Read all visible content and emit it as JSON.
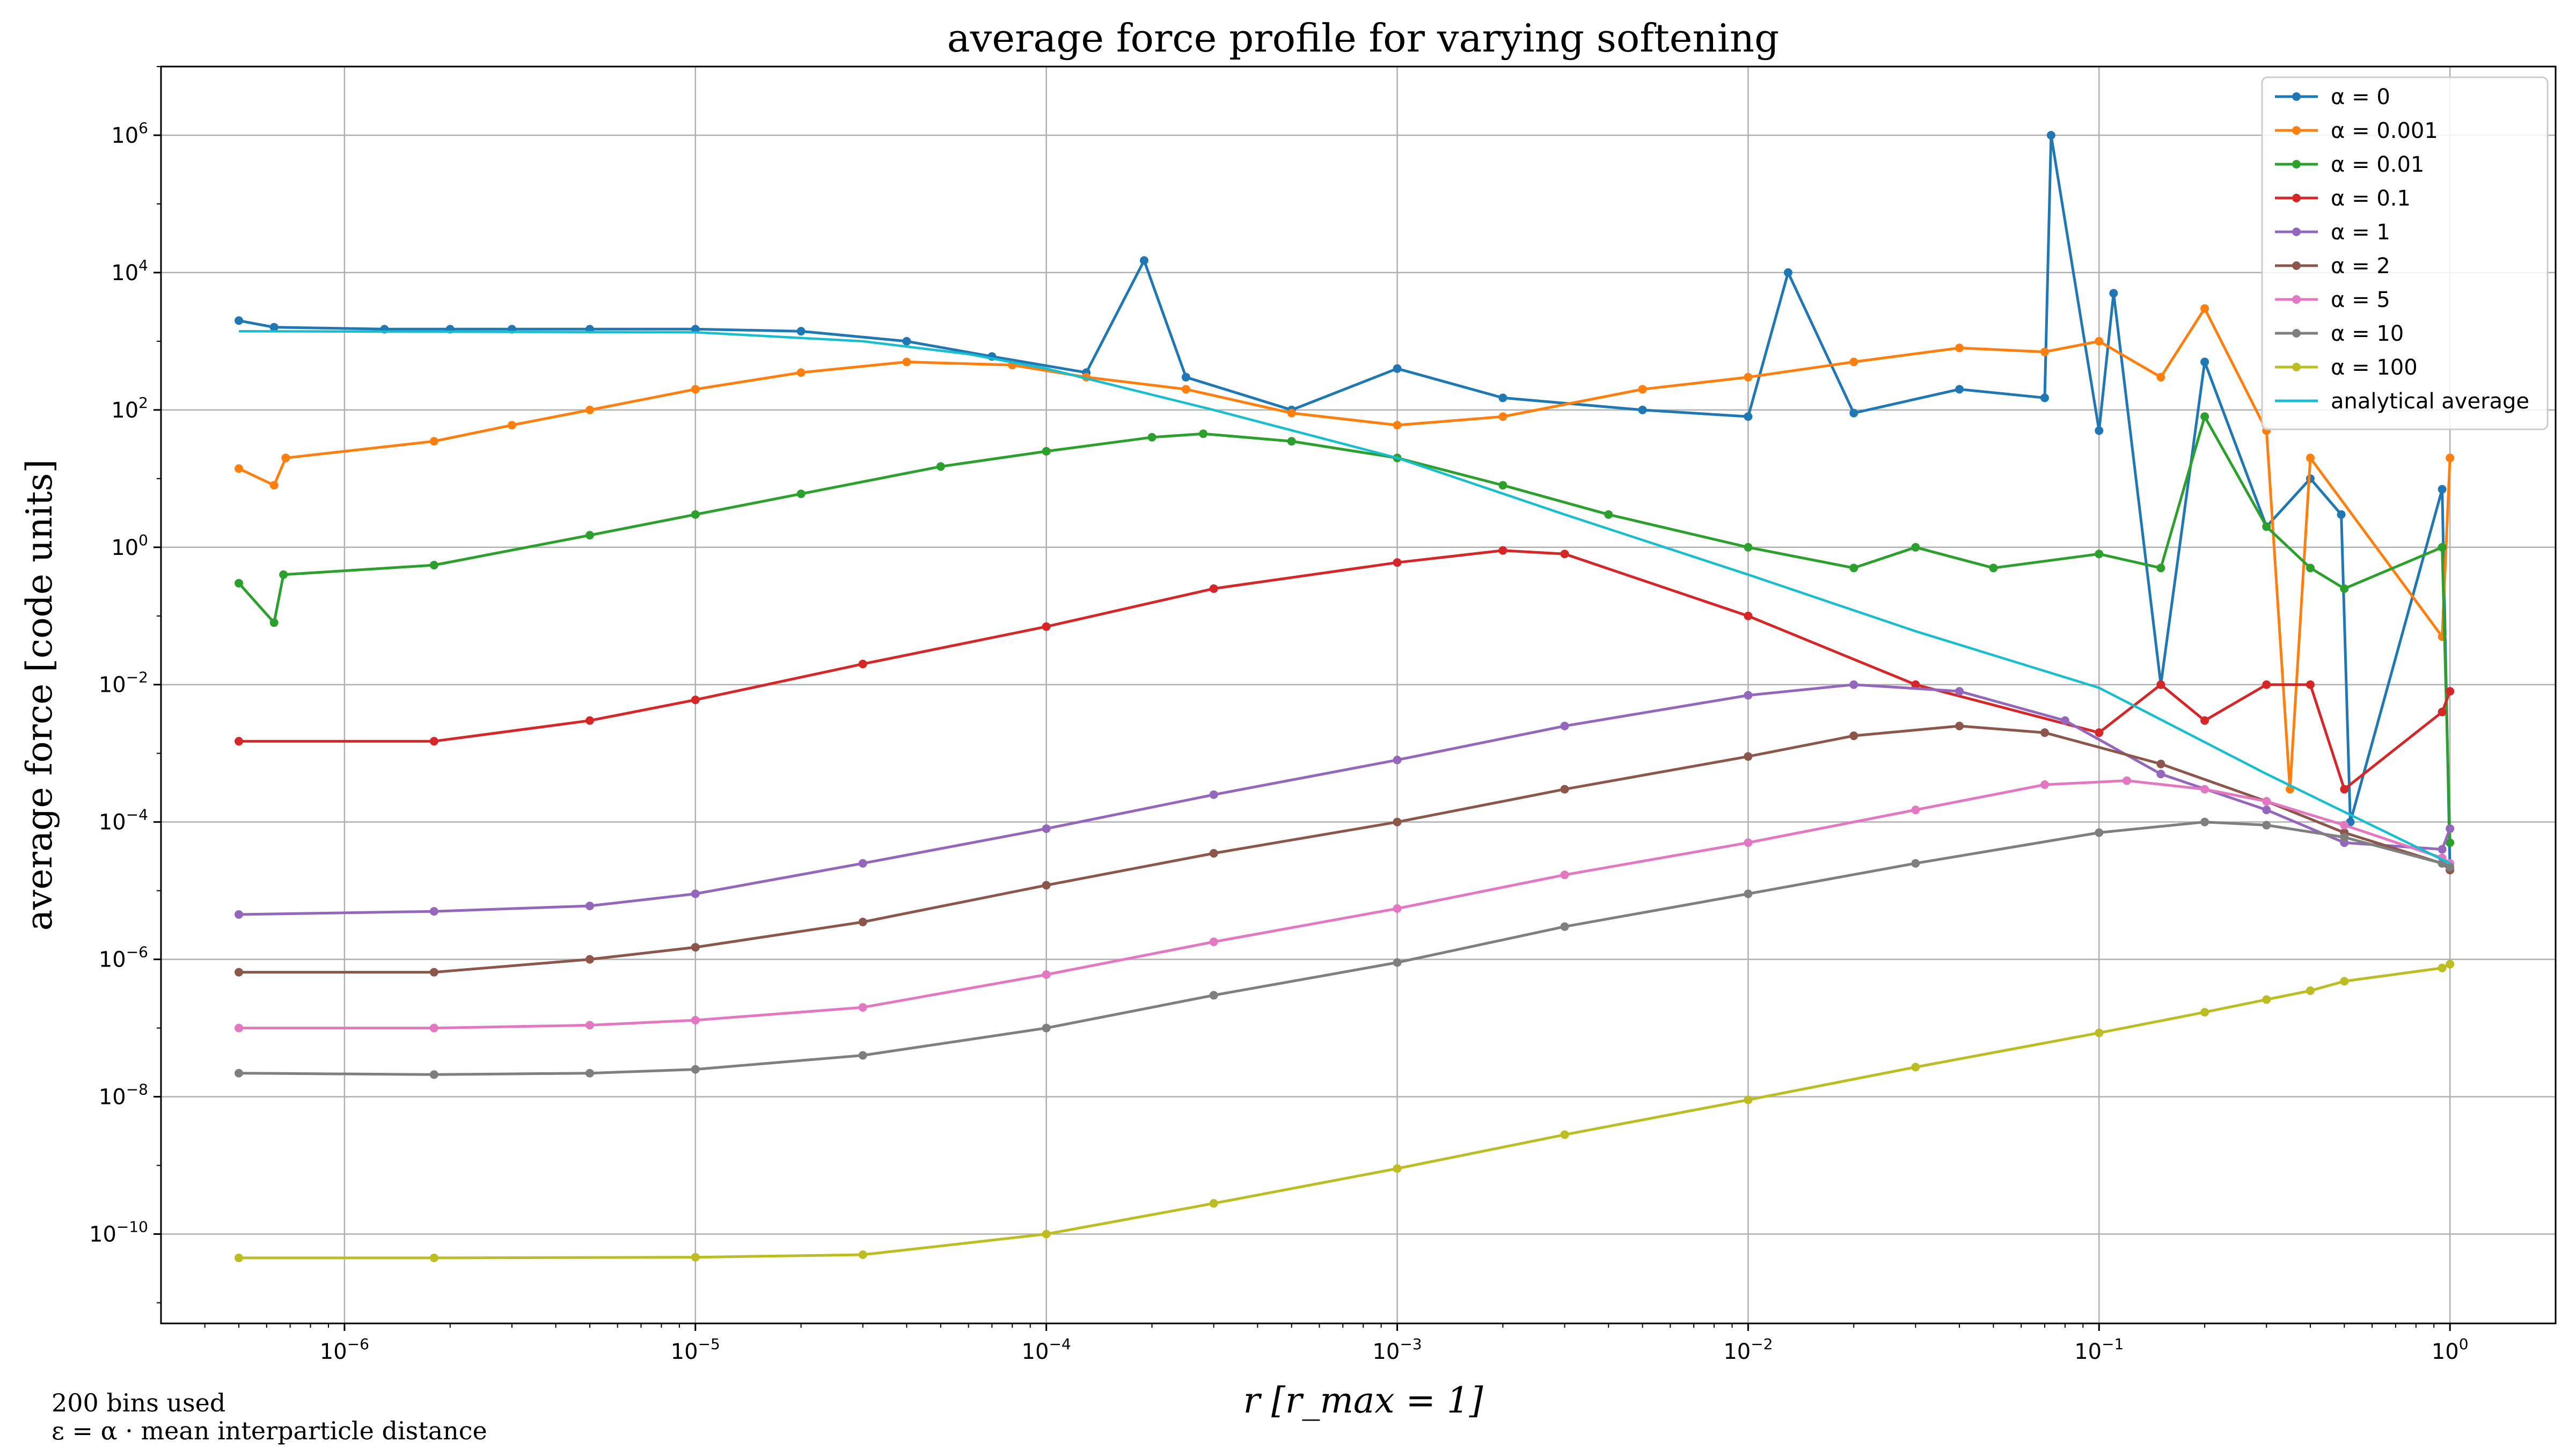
{
  "chart_data": {
    "type": "line",
    "title": "average force profile for varying softening",
    "xlabel": "r [r_max = 1]",
    "ylabel": "average force [code units]",
    "xscale": "log",
    "yscale": "log",
    "xlim": [
      3e-07,
      2.0
    ],
    "ylim": [
      5e-12,
      10000000.0
    ],
    "xticks": [
      1e-06,
      1e-05,
      0.0001,
      0.001,
      0.01,
      0.1,
      1
    ],
    "xtick_labels": [
      "10^-6",
      "10^-5",
      "10^-4",
      "10^-3",
      "10^-2",
      "10^-1",
      "10^0"
    ],
    "yticks": [
      1e-10,
      1e-08,
      1e-06,
      0.0001,
      0.01,
      1,
      100.0,
      10000.0,
      1000000.0
    ],
    "ytick_labels": [
      "10^-10",
      "10^-8",
      "10^-6",
      "10^-4",
      "10^-2",
      "10^0",
      "10^2",
      "10^4",
      "10^6"
    ],
    "grid": true,
    "legend_position": "top-right",
    "series": [
      {
        "name": "α = 0",
        "color": "#1f77b4",
        "points": [
          [
            5e-07,
            2000
          ],
          [
            6.3e-07,
            1600
          ],
          [
            1.3e-06,
            1500
          ],
          [
            2e-06,
            1500
          ],
          [
            3e-06,
            1500
          ],
          [
            5e-06,
            1500
          ],
          [
            1e-05,
            1500
          ],
          [
            2e-05,
            1400
          ],
          [
            4e-05,
            1000
          ],
          [
            7e-05,
            600
          ],
          [
            0.00013,
            350
          ],
          [
            0.00019,
            15000
          ],
          [
            0.00025,
            300
          ],
          [
            0.0005,
            100
          ],
          [
            0.001,
            400
          ],
          [
            0.002,
            150
          ],
          [
            0.005,
            100
          ],
          [
            0.01,
            80
          ],
          [
            0.013,
            10000
          ],
          [
            0.02,
            90
          ],
          [
            0.04,
            200
          ],
          [
            0.07,
            150
          ],
          [
            0.073,
            1000000
          ],
          [
            0.1,
            50
          ],
          [
            0.11,
            5000
          ],
          [
            0.15,
            0.01
          ],
          [
            0.2,
            500
          ],
          [
            0.3,
            2
          ],
          [
            0.4,
            10
          ],
          [
            0.49,
            3
          ],
          [
            0.52,
            0.0001
          ],
          [
            0.95,
            7
          ],
          [
            1.0,
            2e-05
          ]
        ]
      },
      {
        "name": "α = 0.001",
        "color": "#ff7f0e",
        "points": [
          [
            5e-07,
            14
          ],
          [
            6.3e-07,
            8
          ],
          [
            6.8e-07,
            20
          ],
          [
            1.8e-06,
            35
          ],
          [
            3e-06,
            60
          ],
          [
            5e-06,
            100
          ],
          [
            1e-05,
            200
          ],
          [
            2e-05,
            350
          ],
          [
            4e-05,
            500
          ],
          [
            8e-05,
            450
          ],
          [
            0.00013,
            300
          ],
          [
            0.00025,
            200
          ],
          [
            0.0005,
            90
          ],
          [
            0.001,
            60
          ],
          [
            0.002,
            80
          ],
          [
            0.005,
            200
          ],
          [
            0.01,
            300
          ],
          [
            0.02,
            500
          ],
          [
            0.04,
            800
          ],
          [
            0.07,
            700
          ],
          [
            0.1,
            1000
          ],
          [
            0.15,
            300
          ],
          [
            0.2,
            3000
          ],
          [
            0.3,
            50
          ],
          [
            0.35,
            0.0003
          ],
          [
            0.4,
            20
          ],
          [
            0.95,
            0.05
          ],
          [
            1.0,
            20
          ]
        ]
      },
      {
        "name": "α = 0.01",
        "color": "#2ca02c",
        "points": [
          [
            5e-07,
            0.3
          ],
          [
            6.3e-07,
            0.08
          ],
          [
            6.7e-07,
            0.4
          ],
          [
            1.8e-06,
            0.55
          ],
          [
            5e-06,
            1.5
          ],
          [
            1e-05,
            3
          ],
          [
            2e-05,
            6
          ],
          [
            5e-05,
            15
          ],
          [
            0.0001,
            25
          ],
          [
            0.0002,
            40
          ],
          [
            0.00028,
            45
          ],
          [
            0.0005,
            35
          ],
          [
            0.001,
            20
          ],
          [
            0.002,
            8
          ],
          [
            0.004,
            3
          ],
          [
            0.01,
            1
          ],
          [
            0.02,
            0.5
          ],
          [
            0.03,
            1
          ],
          [
            0.05,
            0.5
          ],
          [
            0.1,
            0.8
          ],
          [
            0.15,
            0.5
          ],
          [
            0.2,
            80
          ],
          [
            0.3,
            2
          ],
          [
            0.4,
            0.5
          ],
          [
            0.5,
            0.25
          ],
          [
            0.95,
            1
          ],
          [
            1.0,
            5e-05
          ]
        ]
      },
      {
        "name": "α = 0.1",
        "color": "#d62728",
        "points": [
          [
            5e-07,
            0.0015
          ],
          [
            1.8e-06,
            0.0015
          ],
          [
            5e-06,
            0.003
          ],
          [
            1e-05,
            0.006
          ],
          [
            3e-05,
            0.02
          ],
          [
            0.0001,
            0.07
          ],
          [
            0.0003,
            0.25
          ],
          [
            0.001,
            0.6
          ],
          [
            0.002,
            0.9
          ],
          [
            0.003,
            0.8
          ],
          [
            0.01,
            0.1
          ],
          [
            0.03,
            0.01
          ],
          [
            0.1,
            0.002
          ],
          [
            0.15,
            0.01
          ],
          [
            0.2,
            0.003
          ],
          [
            0.3,
            0.01
          ],
          [
            0.4,
            0.01
          ],
          [
            0.5,
            0.0003
          ],
          [
            0.95,
            0.004
          ],
          [
            1.0,
            0.008
          ]
        ]
      },
      {
        "name": "α = 1",
        "color": "#9467bd",
        "points": [
          [
            5e-07,
            4.5e-06
          ],
          [
            1.8e-06,
            5e-06
          ],
          [
            5e-06,
            6e-06
          ],
          [
            1e-05,
            9e-06
          ],
          [
            3e-05,
            2.5e-05
          ],
          [
            0.0001,
            8e-05
          ],
          [
            0.0003,
            0.00025
          ],
          [
            0.001,
            0.0008
          ],
          [
            0.003,
            0.0025
          ],
          [
            0.01,
            0.007
          ],
          [
            0.02,
            0.01
          ],
          [
            0.04,
            0.008
          ],
          [
            0.08,
            0.003
          ],
          [
            0.15,
            0.0005
          ],
          [
            0.3,
            0.00015
          ],
          [
            0.5,
            5e-05
          ],
          [
            0.95,
            4e-05
          ],
          [
            1.0,
            8e-05
          ]
        ]
      },
      {
        "name": "α = 2",
        "color": "#8c564b",
        "points": [
          [
            5e-07,
            6.5e-07
          ],
          [
            1.8e-06,
            6.5e-07
          ],
          [
            5e-06,
            1e-06
          ],
          [
            1e-05,
            1.5e-06
          ],
          [
            3e-05,
            3.5e-06
          ],
          [
            0.0001,
            1.2e-05
          ],
          [
            0.0003,
            3.5e-05
          ],
          [
            0.001,
            0.0001
          ],
          [
            0.003,
            0.0003
          ],
          [
            0.01,
            0.0009
          ],
          [
            0.02,
            0.0018
          ],
          [
            0.04,
            0.0025
          ],
          [
            0.07,
            0.002
          ],
          [
            0.15,
            0.0007
          ],
          [
            0.3,
            0.0002
          ],
          [
            0.5,
            7e-05
          ],
          [
            0.95,
            2.5e-05
          ],
          [
            1.0,
            2e-05
          ]
        ]
      },
      {
        "name": "α = 5",
        "color": "#e377c2",
        "points": [
          [
            5e-07,
            1e-07
          ],
          [
            1.8e-06,
            1e-07
          ],
          [
            5e-06,
            1.1e-07
          ],
          [
            1e-05,
            1.3e-07
          ],
          [
            3e-05,
            2e-07
          ],
          [
            0.0001,
            6e-07
          ],
          [
            0.0003,
            1.8e-06
          ],
          [
            0.001,
            5.5e-06
          ],
          [
            0.003,
            1.7e-05
          ],
          [
            0.01,
            5e-05
          ],
          [
            0.03,
            0.00015
          ],
          [
            0.07,
            0.00035
          ],
          [
            0.12,
            0.0004
          ],
          [
            0.2,
            0.0003
          ],
          [
            0.3,
            0.0002
          ],
          [
            0.5,
            9e-05
          ],
          [
            0.95,
            3e-05
          ],
          [
            1.0,
            2.5e-05
          ]
        ]
      },
      {
        "name": "α = 10",
        "color": "#7f7f7f",
        "points": [
          [
            5e-07,
            2.2e-08
          ],
          [
            1.8e-06,
            2.1e-08
          ],
          [
            5e-06,
            2.2e-08
          ],
          [
            1e-05,
            2.5e-08
          ],
          [
            3e-05,
            4e-08
          ],
          [
            0.0001,
            1e-07
          ],
          [
            0.0003,
            3e-07
          ],
          [
            0.001,
            9e-07
          ],
          [
            0.003,
            3e-06
          ],
          [
            0.01,
            9e-06
          ],
          [
            0.03,
            2.5e-05
          ],
          [
            0.1,
            7e-05
          ],
          [
            0.2,
            0.0001
          ],
          [
            0.3,
            9e-05
          ],
          [
            0.5,
            6e-05
          ],
          [
            0.95,
            2.5e-05
          ],
          [
            1.0,
            2.2e-05
          ]
        ]
      },
      {
        "name": "α = 100",
        "color": "#bcbd22",
        "points": [
          [
            5e-07,
            4.5e-11
          ],
          [
            1.8e-06,
            4.5e-11
          ],
          [
            1e-05,
            4.6e-11
          ],
          [
            3e-05,
            5e-11
          ],
          [
            0.0001,
            1e-10
          ],
          [
            0.0003,
            2.8e-10
          ],
          [
            0.001,
            9e-10
          ],
          [
            0.003,
            2.8e-09
          ],
          [
            0.01,
            9e-09
          ],
          [
            0.03,
            2.7e-08
          ],
          [
            0.1,
            8.5e-08
          ],
          [
            0.2,
            1.7e-07
          ],
          [
            0.3,
            2.6e-07
          ],
          [
            0.4,
            3.5e-07
          ],
          [
            0.5,
            4.8e-07
          ],
          [
            0.95,
            7.5e-07
          ],
          [
            1.0,
            8.5e-07
          ]
        ]
      },
      {
        "name": "analytical average",
        "color": "#17becf",
        "line_only": true,
        "points": [
          [
            5e-07,
            1400
          ],
          [
            1e-05,
            1350
          ],
          [
            3e-05,
            1000
          ],
          [
            6e-05,
            650
          ],
          [
            0.0001,
            400
          ],
          [
            0.0003,
            100
          ],
          [
            0.001,
            20
          ],
          [
            0.003,
            3
          ],
          [
            0.01,
            0.4
          ],
          [
            0.03,
            0.06
          ],
          [
            0.1,
            0.009
          ],
          [
            0.3,
            0.0005
          ],
          [
            1.0,
            2.5e-05
          ]
        ]
      }
    ],
    "notes": [
      "200 bins used",
      "ε = α · mean interparticle distance"
    ]
  }
}
